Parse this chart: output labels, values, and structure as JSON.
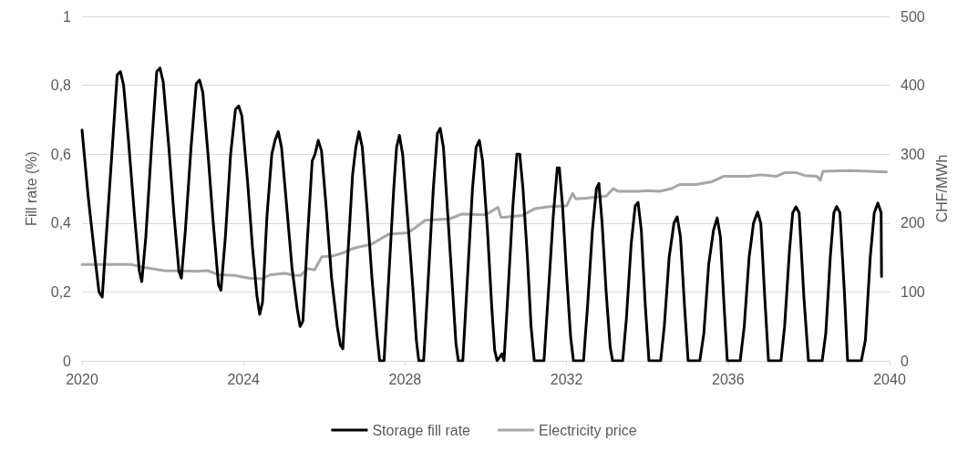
{
  "chart_data": {
    "type": "line",
    "ylabel": "Fill rate (%)",
    "y2label": "CHF/MWh",
    "xlim": [
      2020,
      2040
    ],
    "xticks": [
      2020,
      2024,
      2028,
      2032,
      2036,
      2040
    ],
    "ylim": [
      0,
      1
    ],
    "yticks": [
      0,
      {
        "value": 0.2,
        "label": "0,2"
      },
      {
        "value": 0.4,
        "label": "0,4"
      },
      {
        "value": 0.6,
        "label": "0,6"
      },
      {
        "value": 0.8,
        "label": "0,8"
      },
      1
    ],
    "y2lim": [
      0,
      500
    ],
    "y2ticks": [
      0,
      100,
      200,
      300,
      400,
      500
    ],
    "grid": "y",
    "legend": "bottom",
    "marker": "none",
    "line_style": "solid",
    "series": [
      {
        "name": "Storage fill rate",
        "color": "#000000",
        "axis": "y",
        "x": [
          2020.0,
          2020.15,
          2020.3,
          2020.42,
          2020.5,
          2020.6,
          2020.75,
          2020.87,
          2020.95,
          2021.03,
          2021.15,
          2021.3,
          2021.42,
          2021.48,
          2021.58,
          2021.72,
          2021.85,
          2021.93,
          2022.01,
          2022.15,
          2022.28,
          2022.4,
          2022.46,
          2022.56,
          2022.7,
          2022.83,
          2022.91,
          2022.99,
          2023.12,
          2023.25,
          2023.38,
          2023.44,
          2023.55,
          2023.68,
          2023.8,
          2023.88,
          2023.96,
          2024.1,
          2024.22,
          2024.33,
          2024.4,
          2024.47,
          2024.58,
          2024.7,
          2024.78,
          2024.86,
          2024.94,
          2025.06,
          2025.2,
          2025.33,
          2025.4,
          2025.47,
          2025.58,
          2025.7,
          2025.77,
          2025.85,
          2025.93,
          2026.05,
          2026.18,
          2026.32,
          2026.4,
          2026.46,
          2026.58,
          2026.7,
          2026.78,
          2026.86,
          2026.94,
          2027.06,
          2027.18,
          2027.3,
          2027.37,
          2027.48,
          2027.6,
          2027.72,
          2027.79,
          2027.86,
          2027.94,
          2028.06,
          2028.2,
          2028.28,
          2028.34,
          2028.46,
          2028.58,
          2028.7,
          2028.8,
          2028.87,
          2028.95,
          2029.06,
          2029.18,
          2029.26,
          2029.32,
          2029.43,
          2029.55,
          2029.67,
          2029.76,
          2029.84,
          2029.92,
          2030.04,
          2030.15,
          2030.22,
          2030.28,
          2030.4,
          2030.45,
          2030.55,
          2030.67,
          2030.77,
          2030.84,
          2030.92,
          2031.03,
          2031.12,
          2031.2,
          2031.44,
          2031.55,
          2031.67,
          2031.77,
          2031.82,
          2031.9,
          2032.0,
          2032.1,
          2032.17,
          2032.42,
          2032.52,
          2032.64,
          2032.74,
          2032.8,
          2032.88,
          2032.98,
          2033.08,
          2033.14,
          2033.39,
          2033.48,
          2033.6,
          2033.7,
          2033.77,
          2033.85,
          2033.95,
          2034.04,
          2034.33,
          2034.42,
          2034.54,
          2034.66,
          2034.74,
          2034.82,
          2034.92,
          2035.01,
          2035.3,
          2035.4,
          2035.52,
          2035.64,
          2035.73,
          2035.81,
          2035.9,
          2035.98,
          2036.3,
          2036.4,
          2036.52,
          2036.63,
          2036.73,
          2036.81,
          2036.91,
          2037.0,
          2037.31,
          2037.4,
          2037.52,
          2037.6,
          2037.68,
          2037.76,
          2037.88,
          2037.99,
          2038.33,
          2038.42,
          2038.53,
          2038.62,
          2038.69,
          2038.77,
          2038.88,
          2038.96,
          2039.3,
          2039.4,
          2039.52,
          2039.62,
          2039.71,
          2039.79,
          2039.8
        ],
        "values": [
          0.67,
          0.48,
          0.32,
          0.2,
          0.185,
          0.36,
          0.62,
          0.83,
          0.84,
          0.8,
          0.64,
          0.42,
          0.26,
          0.23,
          0.36,
          0.62,
          0.84,
          0.85,
          0.81,
          0.62,
          0.42,
          0.26,
          0.24,
          0.38,
          0.62,
          0.805,
          0.815,
          0.78,
          0.6,
          0.4,
          0.22,
          0.205,
          0.36,
          0.6,
          0.73,
          0.74,
          0.71,
          0.52,
          0.33,
          0.19,
          0.135,
          0.17,
          0.42,
          0.6,
          0.64,
          0.665,
          0.62,
          0.46,
          0.27,
          0.15,
          0.1,
          0.115,
          0.35,
          0.58,
          0.6,
          0.64,
          0.61,
          0.44,
          0.24,
          0.1,
          0.045,
          0.035,
          0.3,
          0.54,
          0.62,
          0.665,
          0.62,
          0.44,
          0.24,
          0.08,
          0,
          0,
          0.25,
          0.5,
          0.62,
          0.655,
          0.6,
          0.42,
          0.2,
          0.06,
          0,
          0,
          0.25,
          0.5,
          0.66,
          0.675,
          0.62,
          0.42,
          0.2,
          0.05,
          0,
          0,
          0.25,
          0.5,
          0.62,
          0.64,
          0.58,
          0.38,
          0.15,
          0.03,
          0,
          0.02,
          0,
          0.2,
          0.45,
          0.6,
          0.6,
          0.5,
          0.3,
          0.1,
          0,
          0,
          0.2,
          0.42,
          0.56,
          0.56,
          0.45,
          0.25,
          0.07,
          0,
          0,
          0.16,
          0.38,
          0.5,
          0.515,
          0.4,
          0.2,
          0.04,
          0,
          0,
          0.12,
          0.34,
          0.45,
          0.46,
          0.38,
          0.16,
          0,
          0,
          0.1,
          0.3,
          0.4,
          0.418,
          0.36,
          0.16,
          0,
          0,
          0.08,
          0.28,
          0.38,
          0.415,
          0.36,
          0.16,
          0,
          0,
          0.1,
          0.3,
          0.4,
          0.432,
          0.4,
          0.18,
          0,
          0,
          0.1,
          0.32,
          0.43,
          0.447,
          0.43,
          0.18,
          0,
          0,
          0.08,
          0.3,
          0.43,
          0.448,
          0.43,
          0.2,
          0,
          0,
          0.06,
          0.3,
          0.43,
          0.458,
          0.43,
          0.245
        ]
      },
      {
        "name": "Electricity price",
        "color": "#a6a6a6",
        "axis": "y2",
        "x": [
          2020.0,
          2021.2,
          2021.5,
          2022.03,
          2022.87,
          2023.1,
          2023.39,
          2023.77,
          2024.13,
          2024.45,
          2024.67,
          2025.03,
          2025.26,
          2025.42,
          2025.58,
          2025.76,
          2025.94,
          2026.2,
          2026.48,
          2026.66,
          2026.84,
          2027.16,
          2027.6,
          2028.08,
          2028.5,
          2029.1,
          2029.41,
          2030.0,
          2030.3,
          2030.38,
          2030.9,
          2031.22,
          2031.58,
          2032.0,
          2032.15,
          2032.23,
          2032.48,
          2032.98,
          2033.16,
          2033.27,
          2033.77,
          2034.0,
          2034.3,
          2034.6,
          2034.8,
          2035.2,
          2035.6,
          2035.9,
          2036.5,
          2036.8,
          2037.2,
          2037.4,
          2037.7,
          2037.9,
          2038.2,
          2038.28,
          2038.35,
          2039.0,
          2039.5,
          2039.92
        ],
        "values": [
          140,
          140,
          136,
          131,
          130,
          131,
          125,
          124,
          120,
          119,
          125,
          127,
          124,
          124,
          134,
          132,
          151,
          152,
          157,
          162,
          165,
          169,
          184,
          186,
          204,
          206,
          213,
          212,
          223,
          208,
          211,
          221,
          224,
          225,
          243,
          235,
          236,
          239,
          250,
          246,
          246,
          247,
          246,
          250,
          256,
          256,
          260,
          268,
          268,
          270,
          268,
          273,
          273,
          269,
          268,
          262,
          275,
          276,
          275,
          274
        ]
      }
    ]
  }
}
